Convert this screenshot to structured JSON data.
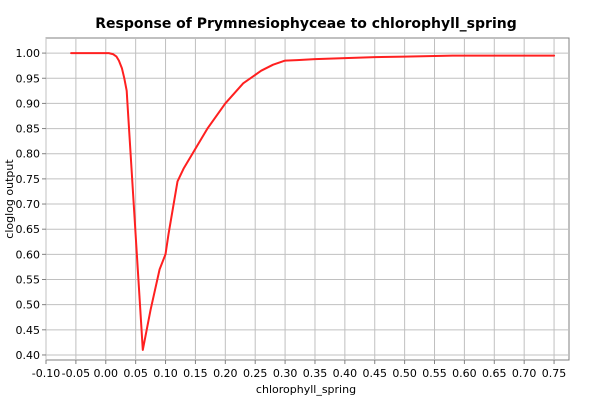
{
  "chart_data": {
    "type": "line",
    "title": "Response of Prymnesiophyceae to chlorophyll_spring",
    "xlabel": "chlorophyll_spring",
    "ylabel": "cloglog output",
    "xlim": [
      -0.1,
      0.775
    ],
    "ylim": [
      0.39,
      1.03
    ],
    "grid": true,
    "x_ticks": [
      "-0.10",
      "-0.05",
      "0.00",
      "0.05",
      "0.10",
      "0.15",
      "0.20",
      "0.25",
      "0.30",
      "0.35",
      "0.40",
      "0.45",
      "0.50",
      "0.55",
      "0.60",
      "0.65",
      "0.70",
      "0.75"
    ],
    "y_ticks": [
      "0.40",
      "0.45",
      "0.50",
      "0.55",
      "0.60",
      "0.65",
      "0.70",
      "0.75",
      "0.80",
      "0.85",
      "0.90",
      "0.95",
      "1.00"
    ],
    "series": [
      {
        "color": "#ff2020",
        "x": [
          -0.058,
          0.005,
          0.012,
          0.018,
          0.022,
          0.027,
          0.031,
          0.035,
          0.036,
          0.062,
          0.075,
          0.09,
          0.1,
          0.105,
          0.12,
          0.13,
          0.15,
          0.17,
          0.2,
          0.23,
          0.26,
          0.28,
          0.3,
          0.32,
          0.35,
          0.4,
          0.45,
          0.5,
          0.58,
          0.75
        ],
        "y": [
          1.0,
          1.0,
          0.998,
          0.993,
          0.985,
          0.97,
          0.95,
          0.925,
          0.905,
          0.41,
          0.49,
          0.57,
          0.6,
          0.64,
          0.745,
          0.77,
          0.81,
          0.85,
          0.9,
          0.94,
          0.965,
          0.977,
          0.985,
          0.986,
          0.988,
          0.99,
          0.992,
          0.993,
          0.995,
          0.995
        ]
      }
    ]
  }
}
